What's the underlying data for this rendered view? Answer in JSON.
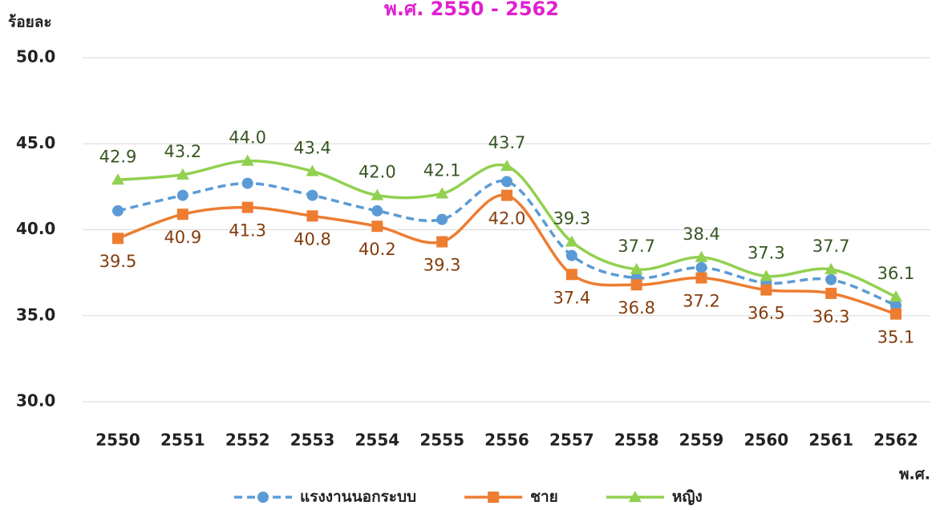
{
  "chart_data": {
    "type": "line",
    "title": "พ.ศ. 2550 - 2562",
    "y_label": "ร้อยละ",
    "x_label": "พ.ศ.",
    "categories": [
      "2550",
      "2551",
      "2552",
      "2553",
      "2554",
      "2555",
      "2556",
      "2557",
      "2558",
      "2559",
      "2560",
      "2561",
      "2562"
    ],
    "series": [
      {
        "name": "แรงงานนอกระบบ",
        "color": "#5b9bd5",
        "dashed": true,
        "marker": "circle",
        "values": [
          41.1,
          42.0,
          42.7,
          42.0,
          41.1,
          40.6,
          42.8,
          38.5,
          37.2,
          37.8,
          36.9,
          37.1,
          35.6
        ]
      },
      {
        "name": "ชาย",
        "color": "#ed7d31",
        "marker": "square",
        "label_color": "#843c0c",
        "label_position": "below",
        "values": [
          39.5,
          40.9,
          41.3,
          40.8,
          40.2,
          39.3,
          42.0,
          37.4,
          36.8,
          37.2,
          36.5,
          36.3,
          35.1
        ],
        "value_labels": [
          "39.5",
          "40.9",
          "41.3",
          "40.8",
          "40.2",
          "39.3",
          "42.0",
          "37.4",
          "36.8",
          "37.2",
          "36.5",
          "36.3",
          "35.1"
        ]
      },
      {
        "name": "หญิง",
        "color": "#92d050",
        "marker": "triangle",
        "label_color": "#375623",
        "label_position": "above",
        "values": [
          42.9,
          43.2,
          44.0,
          43.4,
          42.0,
          42.1,
          43.7,
          39.3,
          37.7,
          38.4,
          37.3,
          37.7,
          36.1
        ],
        "value_labels": [
          "42.9",
          "43.2",
          "44.0",
          "43.4",
          "42.0",
          "42.1",
          "43.7",
          "39.3",
          "37.7",
          "38.4",
          "37.3",
          "37.7",
          "36.1"
        ]
      }
    ],
    "ylim": [
      30,
      50
    ],
    "yticks": [
      {
        "value": 30,
        "label": "30.0"
      },
      {
        "value": 35,
        "label": "35.0"
      },
      {
        "value": 40,
        "label": "40.0"
      },
      {
        "value": 45,
        "label": "45.0"
      },
      {
        "value": 50,
        "label": "50.0"
      }
    ],
    "grid": true,
    "legend": "bottom"
  }
}
